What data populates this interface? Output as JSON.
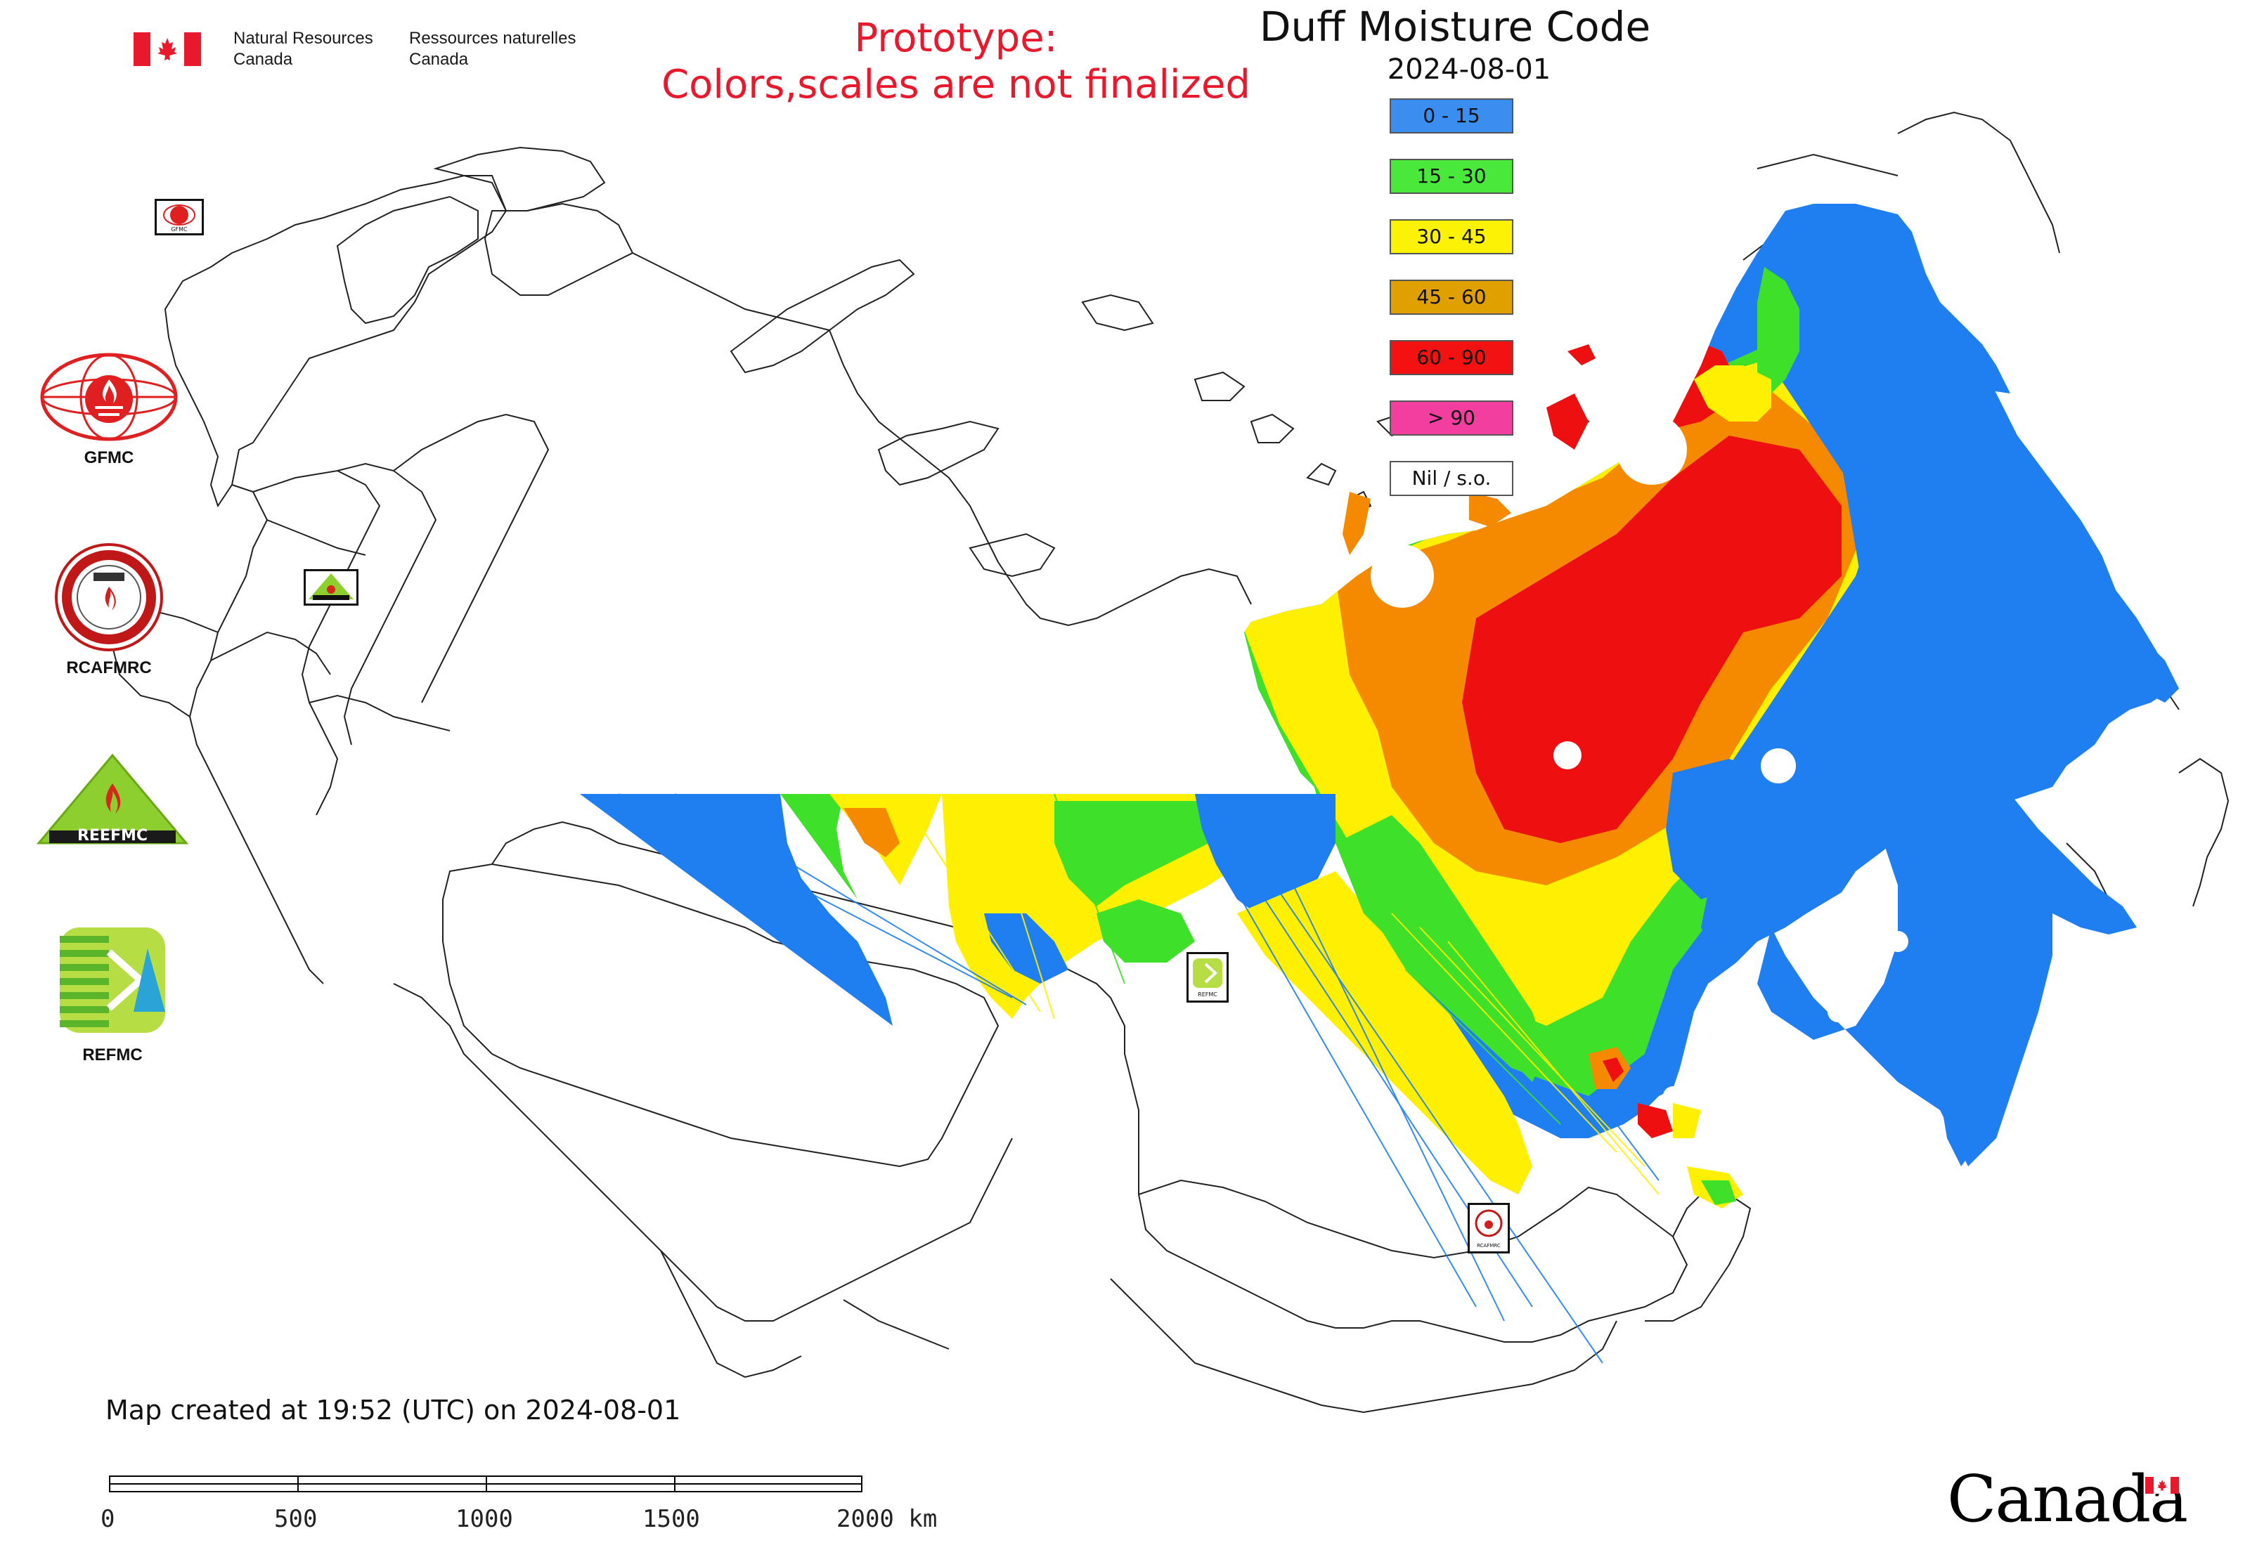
{
  "header": {
    "nrcan_en": [
      "Natural Resources",
      "Canada"
    ],
    "nrcan_fr": [
      "Ressources naturelles",
      "Canada"
    ],
    "prototype_line1": "Prototype:",
    "prototype_line2": "Colors,scales are not finalized"
  },
  "map": {
    "title": "Duff Moisture Code",
    "date": "2024-08-01",
    "legend": [
      {
        "label": "0 - 15",
        "color": "#3a8ef0"
      },
      {
        "label": "15 - 30",
        "color": "#4be83c"
      },
      {
        "label": "30 - 45",
        "color": "#fcf206"
      },
      {
        "label": "45 - 60",
        "color": "#e0a000"
      },
      {
        "label": "60 - 90",
        "color": "#f21212"
      },
      {
        "label": "> 90",
        "color": "#f23e9e"
      },
      {
        "label": "Nil / s.o.",
        "color": "#ffffff"
      }
    ],
    "data_colors": {
      "blue": "#1f7ff0",
      "green": "#3ee02a",
      "yellow": "#ffef00",
      "orange": "#f58a00",
      "red": "#ee1010"
    }
  },
  "side_logos": [
    {
      "label": "GFMC"
    },
    {
      "label": "RCAFMRC"
    },
    {
      "label": "REEFMC"
    },
    {
      "label": "REFMC"
    }
  ],
  "map_logo_labels": {
    "gfmc": "GFMC",
    "reefmc": "REEFMC",
    "refmc": "REFMC",
    "rcafmrc": "RCAFMRC"
  },
  "footer": {
    "created": "Map created at 19:52 (UTC) on 2024-08-01",
    "scale_labels": [
      "0",
      "500",
      "1000",
      "1500",
      "2000 km"
    ],
    "canada": "Canada"
  }
}
